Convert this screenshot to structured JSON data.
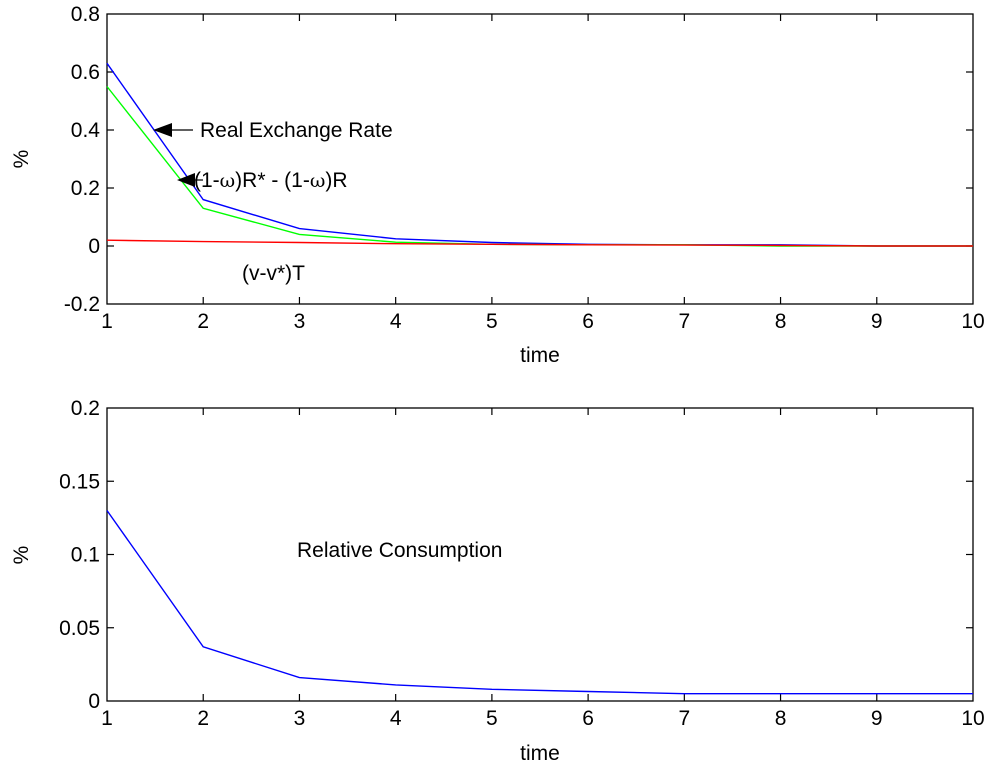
{
  "chart_data": [
    {
      "type": "line",
      "xlabel": "time",
      "ylabel": "%",
      "xlim": [
        1,
        10
      ],
      "ylim": [
        -0.2,
        0.8
      ],
      "xticks": [
        "1",
        "2",
        "3",
        "4",
        "5",
        "6",
        "7",
        "8",
        "9",
        "10"
      ],
      "yticks": [
        "-0.2",
        "0",
        "0.2",
        "0.4",
        "0.6",
        "0.8"
      ],
      "grid": false,
      "x": [
        1,
        2,
        3,
        4,
        5,
        6,
        7,
        8,
        9,
        10
      ],
      "series": [
        {
          "color": "#0000ff",
          "values": [
            0.63,
            0.16,
            0.06,
            0.025,
            0.012,
            0.006,
            0.004,
            0.004,
            0.0,
            0.0
          ]
        },
        {
          "color": "#00ff00",
          "values": [
            0.55,
            0.13,
            0.04,
            0.013,
            0.006,
            0.004,
            0.004,
            0.0,
            0.0,
            0.0
          ]
        },
        {
          "color": "#ff0000",
          "values": [
            0.02,
            0.015,
            0.012,
            0.008,
            0.006,
            0.004,
            0.003,
            0.002,
            0.0,
            0.0
          ]
        }
      ],
      "annotations": [
        {
          "text": "Real Exchange Rate",
          "arrow": true
        },
        {
          "text_pre": "(1-",
          "omega": "ω",
          "text_mid": ")R* - (1-",
          "omega2": "ω",
          "text_post": ")R",
          "arrow": true
        },
        {
          "text": "(v-v*)T",
          "arrow": false
        }
      ]
    },
    {
      "type": "line",
      "xlabel": "time",
      "ylabel": "%",
      "xlim": [
        1,
        10
      ],
      "ylim": [
        0,
        0.2
      ],
      "xticks": [
        "1",
        "2",
        "3",
        "4",
        "5",
        "6",
        "7",
        "8",
        "9",
        "10"
      ],
      "yticks": [
        "0",
        "0.05",
        "0.1",
        "0.15",
        "0.2"
      ],
      "grid": false,
      "x": [
        1,
        2,
        3,
        4,
        5,
        6,
        7,
        8,
        9,
        10
      ],
      "series": [
        {
          "color": "#0000ff",
          "values": [
            0.13,
            0.037,
            0.016,
            0.011,
            0.008,
            0.0065,
            0.005,
            0.005,
            0.005,
            0.005
          ]
        }
      ],
      "annotations": [
        {
          "text": "Relative Consumption"
        }
      ]
    }
  ]
}
